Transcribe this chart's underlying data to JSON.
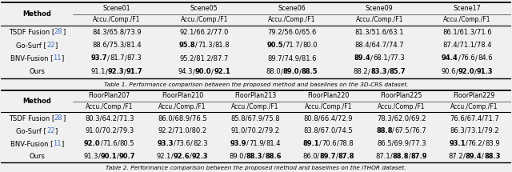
{
  "table1_cols": [
    "Method",
    "Scene01",
    "Scene05",
    "Scene06",
    "Scene09",
    "Scene17"
  ],
  "table1_rows": [
    [
      "TSDF Fusion",
      "28",
      "84.3/65.8/73.9",
      "92.1/66.2/77.0",
      "79.2/56.0/65.6",
      "81.3/51.6/63.1",
      "86.1/61.3/71.6"
    ],
    [
      "Go-Surf",
      "22",
      "88.6/75.3/81.4",
      "95.8/71.3/81.8",
      "90.5/71.7/80.0",
      "88.4/64.7/74.7",
      "87.4/71.1/78.4"
    ],
    [
      "BNV-Fusion",
      "11",
      "93.7/81.7/87.3",
      "95.2/81.2/87.7",
      "89.7/74.9/81.6",
      "89.4/68.1/77.3",
      "94.4/76.6/84.6"
    ],
    [
      "Ours",
      "",
      "91.1/92.3/91.7",
      "94.3/90.0/92.1",
      "88.0/89.0/88.5",
      "88.2/83.3/85.7",
      "90.6/92.0/91.3"
    ]
  ],
  "table1_bold": [
    [
      [
        false,
        false,
        false
      ],
      [
        false,
        false,
        false
      ],
      [
        false,
        false,
        false
      ],
      [
        false,
        false,
        false
      ],
      [
        false,
        false,
        false
      ]
    ],
    [
      [
        false,
        false,
        false
      ],
      [
        true,
        false,
        false
      ],
      [
        true,
        false,
        false
      ],
      [
        false,
        false,
        false
      ],
      [
        false,
        false,
        false
      ]
    ],
    [
      [
        true,
        false,
        false
      ],
      [
        false,
        false,
        false
      ],
      [
        false,
        false,
        false
      ],
      [
        true,
        false,
        false
      ],
      [
        true,
        false,
        false
      ]
    ],
    [
      [
        false,
        true,
        true
      ],
      [
        false,
        true,
        true
      ],
      [
        false,
        true,
        true
      ],
      [
        false,
        true,
        true
      ],
      [
        false,
        true,
        true
      ]
    ]
  ],
  "table1_caption": "Table 1. Performance comparison between the proposed method and baselines on the 3D-CRS dataset.",
  "table2_cols": [
    "Method",
    "FloorPlan207",
    "FloorPlan210",
    "FloorPlan213",
    "FloorPlan220",
    "FloorPlan225",
    "FloorPlan229"
  ],
  "table2_rows": [
    [
      "TSDF Fusion",
      "28",
      "80.3/64.2/71.3",
      "86.0/68.9/76.5",
      "85.8/67.9/75.8",
      "80.8/66.4/72.9",
      "78.3/62.0/69.2",
      "76.6/67.4/71.7"
    ],
    [
      "Go-Surf",
      "22",
      "91.0/70.2/79.3",
      "92.2/71.0/80.2",
      "91.0/70.2/79.2",
      "83.8/67.0/74.5",
      "88.8/67.5/76.7",
      "86.3/73.1/79.2"
    ],
    [
      "BNV-Fusion",
      "11",
      "92.0/71.6/80.5",
      "93.3/73.6/82.3",
      "93.9/71.9/81.4",
      "89.1/70.6/78.8",
      "86.5/69.9/77.3",
      "93.1/76.2/83.9"
    ],
    [
      "Ours",
      "",
      "91.3/90.1/90.7",
      "92.1/92.6/92.3",
      "89.0/88.3/88.6",
      "86.0/89.7/87.8",
      "87.1/88.8/87.9",
      "87.2/89.4/88.3"
    ]
  ],
  "table2_bold": [
    [
      [
        false,
        false,
        false
      ],
      [
        false,
        false,
        false
      ],
      [
        false,
        false,
        false
      ],
      [
        false,
        false,
        false
      ],
      [
        false,
        false,
        false
      ],
      [
        false,
        false,
        false
      ]
    ],
    [
      [
        false,
        false,
        false
      ],
      [
        false,
        false,
        false
      ],
      [
        false,
        false,
        false
      ],
      [
        false,
        false,
        false
      ],
      [
        true,
        false,
        false
      ],
      [
        false,
        false,
        false
      ]
    ],
    [
      [
        true,
        false,
        false
      ],
      [
        true,
        false,
        false
      ],
      [
        true,
        false,
        false
      ],
      [
        true,
        false,
        false
      ],
      [
        false,
        false,
        false
      ],
      [
        true,
        false,
        false
      ]
    ],
    [
      [
        false,
        true,
        true
      ],
      [
        false,
        true,
        true
      ],
      [
        false,
        true,
        true
      ],
      [
        false,
        true,
        true
      ],
      [
        false,
        true,
        true
      ],
      [
        false,
        true,
        true
      ]
    ]
  ],
  "table2_caption": "Table 2. Performance comparison between the proposed method and baselines on the iTHOR dataset.",
  "cite_color": "#4472c4",
  "bg_color": "#f0f0f0",
  "font_size": 6.0,
  "font_size_header": 6.0,
  "font_size_caption": 5.3
}
